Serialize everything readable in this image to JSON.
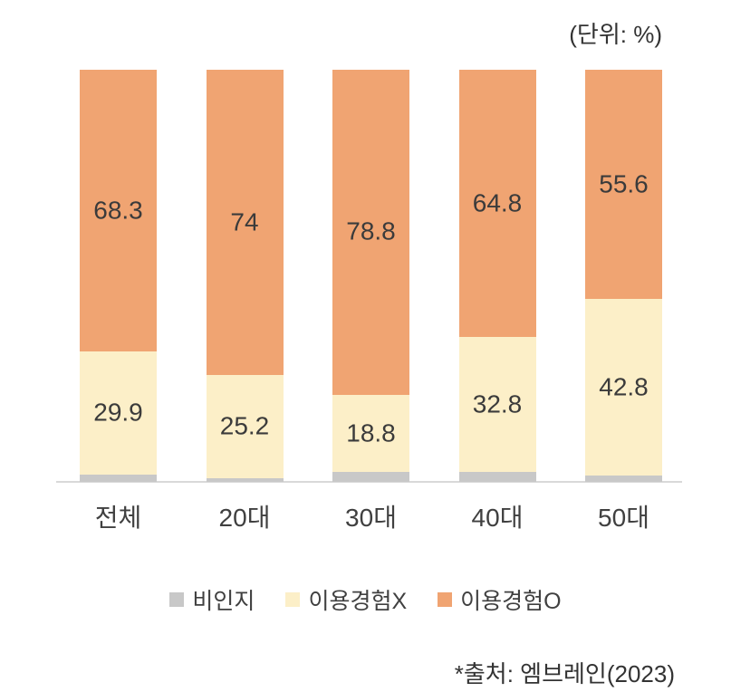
{
  "unit_label": "(단위: %)",
  "source_note": "*출처: 엠브레인(2023)",
  "colors": {
    "non_aware": "#c8c8c8",
    "no_experience": "#fcefc8",
    "experience": "#f0a472",
    "axis_line": "#d9d9d9",
    "text": "#3f3f3f"
  },
  "chart_data": {
    "type": "bar",
    "stacked": true,
    "title": "",
    "xlabel": "",
    "ylabel": "",
    "unit": "%",
    "ylim": [
      0,
      100
    ],
    "grid": false,
    "legend_position": "bottom",
    "value_labels": true,
    "categories": [
      "전체",
      "20대",
      "30대",
      "40대",
      "50대"
    ],
    "series": [
      {
        "name": "비인지",
        "color": "#c8c8c8",
        "values": [
          1.8,
          0.8,
          2.4,
          2.4,
          1.6
        ]
      },
      {
        "name": "이용경험X",
        "color": "#fcefc8",
        "values": [
          29.9,
          25.2,
          18.8,
          32.8,
          42.8
        ]
      },
      {
        "name": "이용경험O",
        "color": "#f0a472",
        "values": [
          68.3,
          74,
          78.8,
          64.8,
          55.6
        ]
      }
    ]
  }
}
